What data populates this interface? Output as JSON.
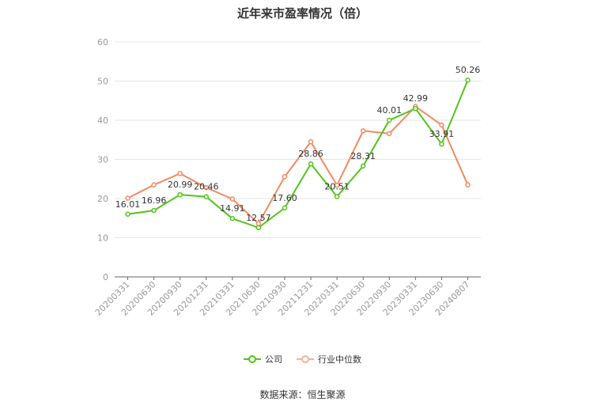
{
  "title": "近年来市盈率情况（倍）",
  "source": "数据来源：恒生聚源",
  "legend": [
    "公司",
    "行业中位数"
  ],
  "colors": {
    "company": "#52c41a",
    "industry": "#f4895f",
    "axis": "#999999",
    "grid": "#e6e6e6"
  },
  "chart_data": {
    "type": "line",
    "title": "近年来市盈率情况（倍）",
    "categories": [
      "20200331",
      "20200630",
      "20200930",
      "20201231",
      "20210331",
      "20210630",
      "20210930",
      "20211231",
      "20220331",
      "20220630",
      "20220930",
      "20230331",
      "20230630",
      "20240807"
    ],
    "ylim": [
      0,
      60
    ],
    "yticks": [
      0,
      10,
      20,
      30,
      40,
      50,
      60
    ],
    "grid": true,
    "legend_position": "bottom",
    "series": [
      {
        "name": "公司",
        "values": [
          16.01,
          16.96,
          20.99,
          20.46,
          14.91,
          12.57,
          17.6,
          28.86,
          20.51,
          28.31,
          40.01,
          42.99,
          33.91,
          50.26
        ],
        "labels": [
          "16.01",
          "16.96",
          "20.99",
          "20.46",
          "14.91",
          "12.57",
          "17.60",
          "28.86",
          "20.51",
          "28.31",
          "40.01",
          "42.99",
          "33.91",
          "50.26"
        ]
      },
      {
        "name": "行业中位数",
        "values": [
          20.1,
          23.5,
          26.4,
          22.8,
          19.9,
          13.6,
          25.6,
          34.5,
          23.4,
          37.3,
          36.6,
          43.5,
          38.8,
          23.5
        ]
      }
    ]
  }
}
